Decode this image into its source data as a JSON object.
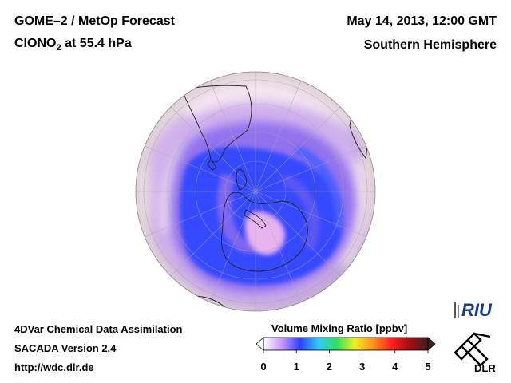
{
  "header": {
    "title_line1": "GOME–2 / MetOp Forecast",
    "species_prefix": "ClONO",
    "species_subscript": "2",
    "species_suffix": " at 55.4 hPa",
    "date": "May 14, 2013, 12:00 GMT",
    "region": "Southern Hemisphere"
  },
  "footer": {
    "line1": "4DVar Chemical Data Assimilation",
    "line2": "SACADA Version 2.4",
    "line3": "http://wdc.dlr.de"
  },
  "colorbar": {
    "title": "Volume Mixing Ratio [ppbv]",
    "min": 0,
    "max": 5,
    "ticks": [
      "0",
      "1",
      "2",
      "3",
      "4",
      "5"
    ],
    "colors": [
      "#ffffff",
      "#c898ff",
      "#3040ff",
      "#30c8ff",
      "#30e060",
      "#f0f020",
      "#ff9020",
      "#ff2020",
      "#a01010",
      "#402020"
    ]
  },
  "logos": {
    "riu": "RIU",
    "dlr": "DLR"
  },
  "map": {
    "projection": "Orthographic, South Pole centered",
    "colors": {
      "background": "#f2e4ea",
      "low": "#3548ff",
      "mid": "#9a78f0",
      "high": "#e6b0ec"
    }
  }
}
